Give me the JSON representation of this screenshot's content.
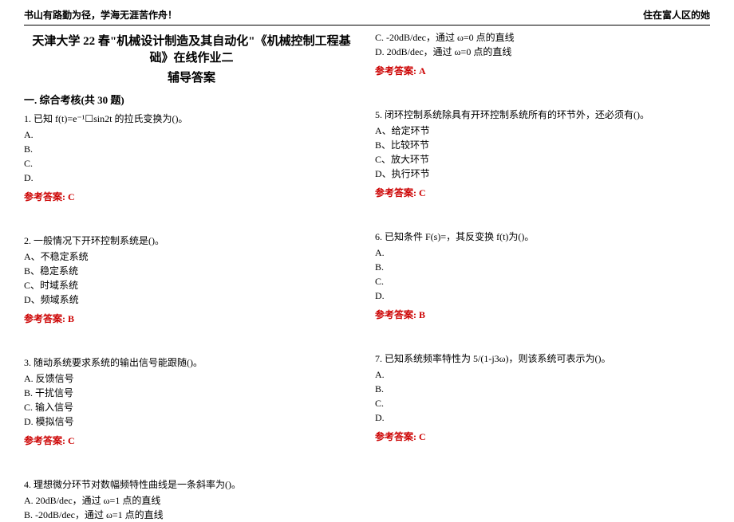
{
  "header": {
    "left": "书山有路勤为径，学海无涯苦作舟！",
    "right": "住在富人区的她"
  },
  "title": "天津大学 22 春\"机械设计制造及其自动化\"《机械控制工程基础》在线作业二",
  "subtitle": "辅导答案",
  "section": "一. 综合考核(共 30 题)",
  "ans_label": "参考答案:",
  "q1": {
    "stem": "1. 已知 f(t)=e⁻¹☐sin2t 的拉氏变换为()。",
    "A": "A.",
    "B": "B.",
    "C": "C.",
    "D": "D.",
    "ans": "C"
  },
  "q2": {
    "stem": "2. 一般情况下开环控制系统是()。",
    "A": "A、不稳定系统",
    "B": "B、稳定系统",
    "C": "C、时域系统",
    "D": "D、频域系统",
    "ans": "B"
  },
  "q3": {
    "stem": "3. 随动系统要求系统的输出信号能跟随()。",
    "A": "A. 反馈信号",
    "B": "B. 干扰信号",
    "C": "C. 输入信号",
    "D": "D. 模拟信号",
    "ans": "C"
  },
  "q4": {
    "stem": "4. 理想微分环节对数幅频特性曲线是一条斜率为()。",
    "A": "A. 20dB/dec，通过 ω=1 点的直线",
    "B": "B. -20dB/dec，通过 ω=1 点的直线",
    "C": "C. -20dB/dec，通过 ω=0 点的直线",
    "D": "D. 20dB/dec，通过 ω=0 点的直线",
    "ans": "A"
  },
  "q5": {
    "stem": "5. 闭环控制系统除具有开环控制系统所有的环节外，还必须有()。",
    "A": "A、给定环节",
    "B": "B、比较环节",
    "C": "C、放大环节",
    "D": "D、执行环节",
    "ans": "C"
  },
  "q6": {
    "stem": "6. 已知条件 F(s)=，其反变换 f(t)为()。",
    "A": "A.",
    "B": "B.",
    "C": "C.",
    "D": "D.",
    "ans": "B"
  },
  "q7": {
    "stem": "7. 已知系统频率特性为 5/(1-j3ω)，则该系统可表示为()。",
    "A": "A.",
    "B": "B.",
    "C": "C.",
    "D": "D.",
    "ans": "C"
  },
  "colors": {
    "answer": "#cc0000",
    "text": "#000000",
    "bg": "#ffffff"
  }
}
